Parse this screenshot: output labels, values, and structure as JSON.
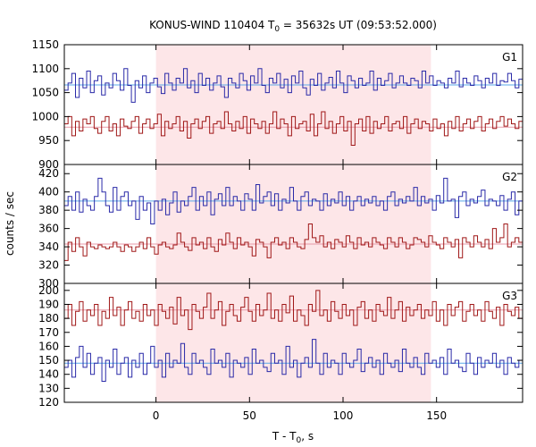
{
  "chart_data": {
    "type": "line",
    "title_main": "KONUS-WIND 110404 T",
    "title_sub": "0",
    "title_rest": " = 35632s UT (09:53:52.000)",
    "xlabel_main": "T - T",
    "xlabel_sub": "0",
    "xlabel_rest": ", s",
    "ylabel": "counts / sec",
    "xlim": [
      -49,
      196
    ],
    "xticks": [
      0,
      50,
      100,
      150
    ],
    "shaded_interval": [
      0,
      147
    ],
    "colors": {
      "blue": "#2a2aa8",
      "red": "#a01818",
      "blue_bg": "#5aa8e8",
      "red_bg": "#e89aa8",
      "shade": "#fde6e8"
    },
    "panels": [
      {
        "name": "G1",
        "ylim": [
          900,
          1150
        ],
        "yticks": [
          900,
          950,
          1000,
          1050,
          1100,
          1150
        ],
        "background_levels": [
          {
            "color": "blue_bg",
            "value": 1066
          },
          {
            "color": "red_bg",
            "value": 978
          }
        ],
        "series": [
          {
            "color": "blue",
            "values": [
              1055,
              1070,
              1090,
              1040,
              1080,
              1060,
              1095,
              1050,
              1075,
              1085,
              1045,
              1070,
              1060,
              1090,
              1075,
              1055,
              1100,
              1065,
              1030,
              1075,
              1060,
              1085,
              1050,
              1070,
              1080,
              1062,
              1048,
              1090,
              1070,
              1055,
              1080,
              1070,
              1100,
              1060,
              1075,
              1050,
              1090,
              1065,
              1080,
              1055,
              1070,
              1085,
              1062,
              1040,
              1080,
              1070,
              1060,
              1090,
              1075,
              1055,
              1085,
              1070,
              1100,
              1065,
              1050,
              1080,
              1070,
              1090,
              1060,
              1078,
              1050,
              1085,
              1070,
              1095,
              1060,
              1045,
              1078,
              1065,
              1090,
              1055,
              1070,
              1082,
              1060,
              1095,
              1070,
              1050,
              1085,
              1075,
              1060,
              1080,
              1065,
              1070,
              1095,
              1055,
              1080,
              1065,
              1075,
              1090,
              1060,
              1070,
              1085,
              1070,
              1065,
              1080,
              1075,
              1060,
              1095,
              1070,
              1085,
              1065,
              1075,
              1070,
              1060,
              1080,
              1070,
              1095,
              1062,
              1080,
              1070,
              1065,
              1085,
              1075,
              1060,
              1080,
              1070,
              1090,
              1065,
              1075,
              1072,
              1090,
              1075,
              1060,
              1078
            ]
          },
          {
            "color": "red",
            "values": [
              985,
              1000,
              960,
              990,
              970,
              995,
              985,
              1000,
              975,
              965,
              990,
              1000,
              970,
              985,
              960,
              995,
              980,
              975,
              990,
              1000,
              965,
              985,
              995,
              975,
              985,
              1005,
              960,
              990,
              975,
              985,
              1000,
              970,
              990,
              955,
              985,
              995,
              975,
              990,
              1000,
              965,
              985,
              990,
              975,
              1010,
              985,
              970,
              990,
              975,
              1000,
              965,
              995,
              985,
              975,
              990,
              965,
              985,
              1010,
              975,
              995,
              985,
              960,
              1000,
              975,
              985,
              990,
              970,
              1005,
              960,
              985,
              1010,
              975,
              990,
              965,
              985,
              1000,
              970,
              990,
              940,
              985,
              995,
              970,
              1000,
              965,
              990,
              975,
              985,
              1000,
              970,
              985,
              990,
              975,
              1000,
              965,
              985,
              995,
              975,
              990,
              985,
              970,
              995,
              975,
              985,
              960,
              990,
              975,
              1000,
              970,
              985,
              995,
              975,
              990,
              1000,
              970,
              985,
              995,
              975,
              990,
              1000,
              980,
              995,
              985,
              975,
              990
            ]
          }
        ]
      },
      {
        "name": "G2",
        "ylim": [
          300,
          430
        ],
        "yticks": [
          300,
          320,
          340,
          360,
          380,
          400,
          420
        ],
        "background_levels": [
          {
            "color": "blue_bg",
            "value": 390
          },
          {
            "color": "red_bg",
            "value": 343
          }
        ],
        "series": [
          {
            "color": "blue",
            "values": [
              385,
              395,
              380,
              400,
              378,
              392,
              385,
              380,
              395,
              415,
              400,
              385,
              378,
              405,
              380,
              395,
              400,
              385,
              390,
              370,
              395,
              380,
              388,
              365,
              390,
              380,
              392,
              375,
              388,
              400,
              378,
              390,
              385,
              395,
              405,
              380,
              395,
              385,
              400,
              375,
              392,
              398,
              385,
              405,
              385,
              395,
              390,
              380,
              398,
              392,
              380,
              408,
              388,
              395,
              400,
              385,
              398,
              380,
              392,
              388,
              405,
              390,
              380,
              395,
              400,
              385,
              392,
              390,
              380,
              398,
              385,
              392,
              388,
              400,
              385,
              395,
              380,
              390,
              395,
              385,
              392,
              388,
              395,
              385,
              390,
              380,
              395,
              400,
              385,
              392,
              388,
              395,
              390,
              405,
              385,
              395,
              388,
              392,
              380,
              396,
              388,
              415,
              390,
              392,
              372,
              395,
              400,
              385,
              392,
              388,
              395,
              402,
              385,
              392,
              390,
              385,
              396,
              380,
              392,
              400,
              375,
              390
            ]
          },
          {
            "color": "red",
            "values": [
              325,
              345,
              335,
              350,
              340,
              330,
              345,
              340,
              338,
              342,
              340,
              338,
              340,
              345,
              340,
              335,
              342,
              340,
              335,
              340,
              345,
              338,
              350,
              340,
              332,
              342,
              345,
              340,
              338,
              342,
              355,
              345,
              340,
              336,
              350,
              342,
              345,
              338,
              350,
              340,
              335,
              348,
              342,
              355,
              345,
              338,
              350,
              342,
              345,
              340,
              330,
              348,
              345,
              340,
              328,
              345,
              350,
              342,
              345,
              338,
              350,
              345,
              340,
              338,
              348,
              365,
              350,
              345,
              352,
              340,
              345,
              338,
              348,
              345,
              340,
              352,
              345,
              338,
              350,
              342,
              345,
              340,
              350,
              345,
              342,
              338,
              350,
              345,
              340,
              350,
              345,
              338,
              342,
              350,
              348,
              345,
              340,
              352,
              345,
              342,
              338,
              350,
              345,
              340,
              348,
              328,
              350,
              345,
              340,
              352,
              345,
              340,
              348,
              338,
              360,
              345,
              350,
              365,
              340,
              345,
              350,
              345
            ]
          }
        ]
      },
      {
        "name": "G3",
        "ylim": [
          120,
          205
        ],
        "yticks": [
          120,
          130,
          140,
          150,
          160,
          170,
          180,
          190,
          200
        ],
        "background_levels": [
          {
            "color": "red_bg",
            "value": 186
          },
          {
            "color": "blue_bg",
            "value": 148
          }
        ],
        "series": [
          {
            "color": "red",
            "values": [
              180,
              190,
              175,
              185,
              192,
              178,
              186,
              182,
              190,
              175,
              185,
              180,
              195,
              182,
              188,
              175,
              186,
              192,
              180,
              185,
              178,
              190,
              182,
              186,
              175,
              190,
              185,
              180,
              188,
              176,
              195,
              182,
              186,
              172,
              190,
              185,
              180,
              188,
              198,
              180,
              186,
              192,
              175,
              185,
              190,
              182,
              178,
              188,
              195,
              185,
              178,
              190,
              182,
              186,
              198,
              180,
              186,
              178,
              190,
              184,
              196,
              178,
              186,
              182,
              175,
              190,
              185,
              200,
              182,
              186,
              178,
              192,
              185,
              180,
              190,
              182,
              186,
              175,
              188,
              192,
              180,
              186,
              178,
              190,
              185,
              182,
              195,
              180,
              186,
              192,
              178,
              188,
              182,
              186,
              190,
              180,
              186,
              182,
              192,
              178,
              186,
              175,
              190,
              182,
              188,
              192,
              178,
              185,
              190,
              182,
              186,
              178,
              192,
              185,
              180,
              188,
              175,
              190,
              185,
              182,
              188,
              180
            ]
          },
          {
            "color": "blue",
            "values": [
              145,
              150,
              138,
              152,
              160,
              145,
              155,
              140,
              148,
              152,
              135,
              150,
              145,
              158,
              140,
              148,
              152,
              138,
              150,
              145,
              155,
              140,
              148,
              160,
              145,
              150,
              138,
              155,
              145,
              150,
              148,
              162,
              145,
              140,
              155,
              148,
              150,
              145,
              140,
              158,
              148,
              150,
              145,
              155,
              138,
              150,
              148,
              145,
              152,
              140,
              158,
              148,
              150,
              145,
              142,
              155,
              148,
              150,
              140,
              160,
              145,
              150,
              138,
              148,
              152,
              145,
              165,
              148,
              140,
              155,
              145,
              150,
              148,
              140,
              155,
              148,
              145,
              150,
              158,
              142,
              148,
              152,
              145,
              150,
              140,
              155,
              148,
              145,
              150,
              142,
              158,
              148,
              145,
              152,
              145,
              140,
              155,
              148,
              150,
              145,
              152,
              140,
              158,
              148,
              150,
              145,
              142,
              155,
              148,
              140,
              152,
              145,
              150,
              148,
              155,
              145,
              150,
              140,
              152,
              148,
              145,
              150
            ]
          }
        ]
      }
    ]
  }
}
